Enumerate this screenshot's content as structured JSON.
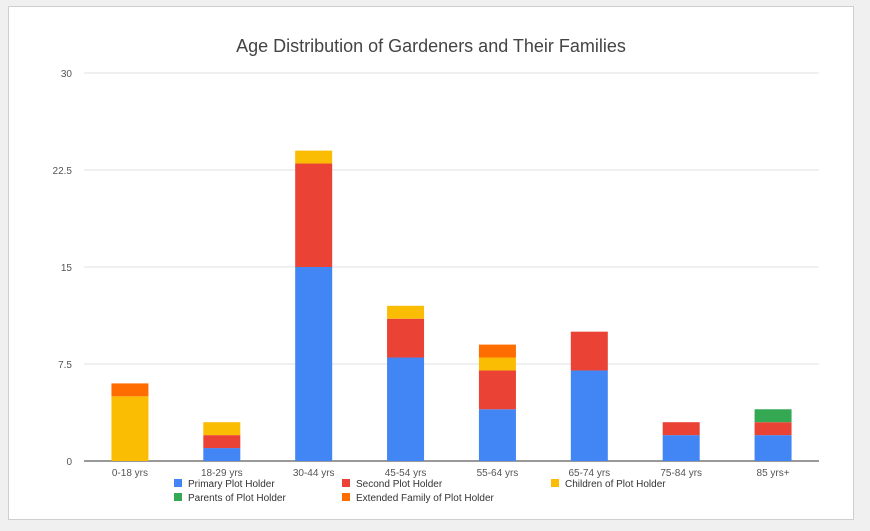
{
  "chart_data": {
    "type": "bar",
    "stacked": true,
    "title": "Age Distribution of Gardeners and Their Families",
    "xlabel": "",
    "ylabel": "",
    "ylim": [
      0,
      30
    ],
    "yticks": [
      "0",
      "7.5",
      "15",
      "22.5",
      "30"
    ],
    "grid": true,
    "legend_position": "bottom",
    "categories": [
      "0-18 yrs",
      "18-29 yrs",
      "30-44 yrs",
      "45-54 yrs",
      "55-64 yrs",
      "65-74 yrs",
      "75-84 yrs",
      "85 yrs+"
    ],
    "series": [
      {
        "name": "Primary Plot Holder",
        "color": "#4285f4",
        "values": [
          0,
          1,
          15,
          8,
          4,
          7,
          2,
          2
        ]
      },
      {
        "name": "Second Plot Holder",
        "color": "#ea4335",
        "values": [
          0,
          1,
          8,
          3,
          3,
          3,
          1,
          1
        ]
      },
      {
        "name": "Children of Plot Holder",
        "color": "#fbbc04",
        "values": [
          5,
          1,
          1,
          1,
          1,
          0,
          0,
          0
        ]
      },
      {
        "name": "Parents of Plot Holder",
        "color": "#34a853",
        "values": [
          0,
          0,
          0,
          0,
          0,
          0,
          0,
          1
        ]
      },
      {
        "name": "Extended Family of Plot Holder",
        "color": "#ff6d01",
        "values": [
          1,
          0,
          0,
          0,
          1,
          0,
          0,
          0
        ]
      }
    ]
  }
}
